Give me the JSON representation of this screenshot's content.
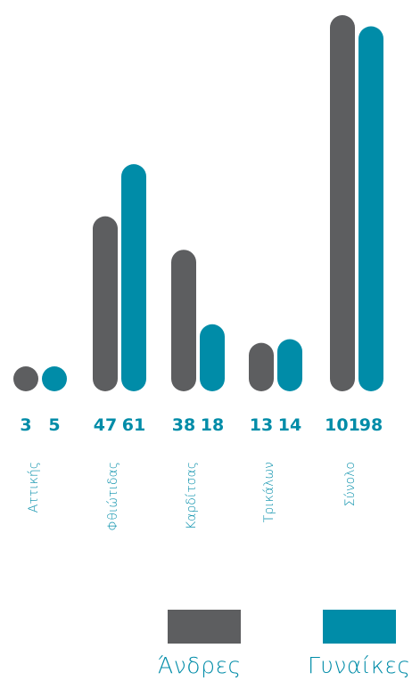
{
  "colors": {
    "men": "#5d5e60",
    "women": "#008ca8"
  },
  "chart_data": {
    "type": "bar",
    "categories": [
      "Αττικής",
      "Φθιώτιδας",
      "Καρδίτσας",
      "Τρικάλων",
      "Σύνολο"
    ],
    "series": [
      {
        "name": "Άνδρες",
        "values": [
          3,
          47,
          38,
          13,
          101
        ]
      },
      {
        "name": "Γυναίκες",
        "values": [
          5,
          61,
          18,
          14,
          98
        ]
      }
    ],
    "value_labels": [
      [
        "3",
        "5"
      ],
      [
        "47",
        "61"
      ],
      [
        "38",
        "18"
      ],
      [
        "13",
        "14"
      ],
      [
        "101",
        "98"
      ]
    ],
    "ylim": [
      0,
      101
    ],
    "grid": false,
    "legend_position": "bottom-right"
  },
  "legend": [
    {
      "label": "Άνδρες",
      "color": "#5d5e60"
    },
    {
      "label": "Γυναίκες",
      "color": "#008ca8"
    }
  ]
}
